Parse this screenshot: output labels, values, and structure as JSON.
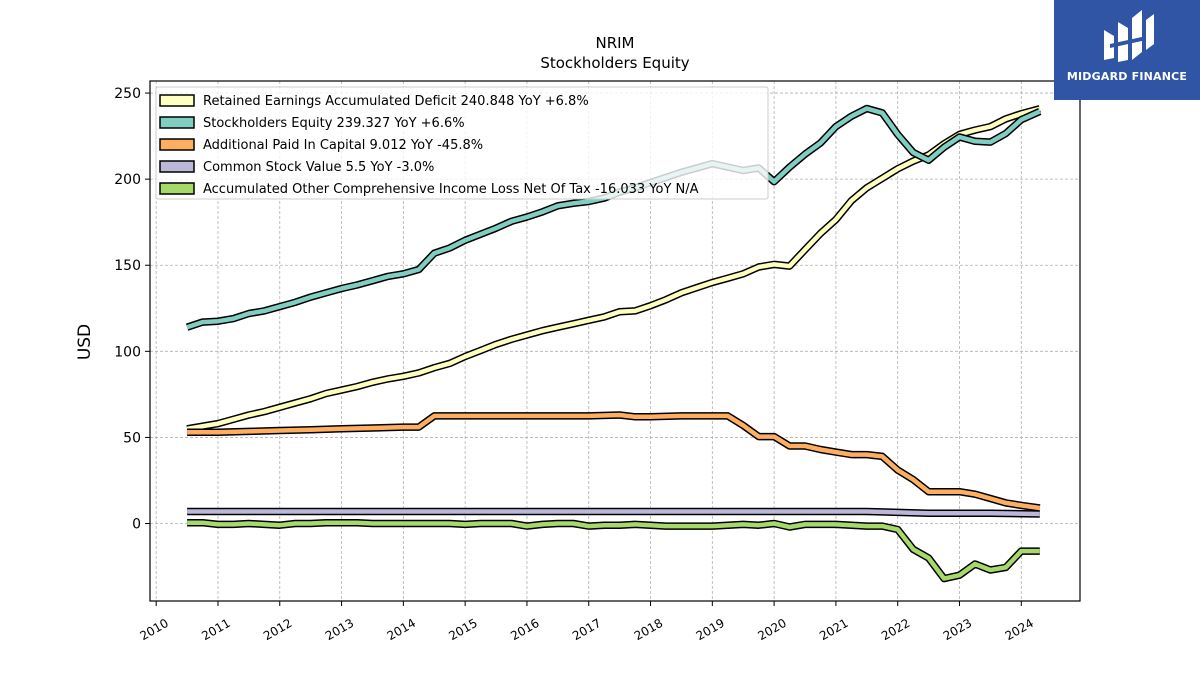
{
  "brand": {
    "name": "MIDGARD FINANCE",
    "bg_color": "#2f55a4"
  },
  "chart_data": {
    "type": "line",
    "title": "NRIM",
    "subtitle": "Stockholders  Equity",
    "ylabel": "USD",
    "xlabel": "",
    "xlim": [
      2009.9,
      2024.95
    ],
    "ylim": [
      -45,
      257
    ],
    "yticks": [
      0,
      50,
      100,
      150,
      200,
      250
    ],
    "xticks": [
      2010,
      2011,
      2012,
      2013,
      2014,
      2015,
      2016,
      2017,
      2018,
      2019,
      2020,
      2021,
      2022,
      2023,
      2024
    ],
    "grid": true,
    "legend_position": "top-left",
    "series": [
      {
        "name": "Retained Earnings Accumulated Deficit  240.848 YoY +6.8%",
        "color": "#ffffbf",
        "x": [
          2010.5,
          2010.75,
          2011.0,
          2011.25,
          2011.5,
          2011.75,
          2012.0,
          2012.25,
          2012.5,
          2012.75,
          2013.0,
          2013.25,
          2013.5,
          2013.75,
          2014.0,
          2014.25,
          2014.5,
          2014.75,
          2015.0,
          2015.25,
          2015.5,
          2015.75,
          2016.0,
          2016.25,
          2016.5,
          2016.75,
          2017.0,
          2017.25,
          2017.5,
          2017.75,
          2018.0,
          2018.25,
          2018.5,
          2018.75,
          2019.0,
          2019.25,
          2019.5,
          2019.75,
          2020.0,
          2020.25,
          2020.5,
          2020.75,
          2021.0,
          2021.25,
          2021.5,
          2021.75,
          2022.0,
          2022.25,
          2022.5,
          2022.75,
          2023.0,
          2023.25,
          2023.5,
          2023.75,
          2024.0,
          2024.3
        ],
        "values": [
          55,
          56.5,
          58,
          60.5,
          63,
          65,
          67.5,
          70,
          72.5,
          75.5,
          77.5,
          79.5,
          82,
          84,
          85.5,
          87.5,
          90.5,
          93,
          97,
          100.5,
          104,
          107,
          109.5,
          112,
          114,
          116,
          118,
          120,
          123,
          123.5,
          126.5,
          130,
          134,
          137,
          140,
          142.5,
          145,
          149,
          150.5,
          149.5,
          159,
          168.5,
          176.5,
          187.5,
          195,
          200.5,
          206,
          210.5,
          214,
          220.5,
          226,
          228.5,
          230.5,
          235,
          238,
          240.848
        ]
      },
      {
        "name": "Stockholders Equity  239.327 YoY +6.6%",
        "color": "#80cdc1",
        "x": [
          2010.5,
          2010.75,
          2011.0,
          2011.25,
          2011.5,
          2011.75,
          2012.0,
          2012.25,
          2012.5,
          2012.75,
          2013.0,
          2013.25,
          2013.5,
          2013.75,
          2014.0,
          2014.25,
          2014.5,
          2014.75,
          2015.0,
          2015.25,
          2015.5,
          2015.75,
          2016.0,
          2016.25,
          2016.5,
          2016.75,
          2017.0,
          2017.25,
          2017.5,
          2017.75,
          2018.0,
          2018.25,
          2018.5,
          2018.75,
          2019.0,
          2019.25,
          2019.5,
          2019.75,
          2020.0,
          2020.25,
          2020.5,
          2020.75,
          2021.0,
          2021.25,
          2021.5,
          2021.75,
          2022.0,
          2022.25,
          2022.5,
          2022.75,
          2023.0,
          2023.25,
          2023.5,
          2023.75,
          2024.0,
          2024.3
        ],
        "values": [
          114,
          117,
          117.5,
          119,
          122,
          123.5,
          126,
          128.5,
          131.5,
          134,
          136.5,
          138.5,
          141,
          143.5,
          145,
          147.5,
          157,
          160,
          164.5,
          168,
          171.5,
          175.5,
          178,
          181,
          184.5,
          186,
          187,
          189,
          192.5,
          195,
          198,
          201,
          204,
          206.5,
          209,
          207,
          205,
          206.5,
          198.5,
          207,
          214.5,
          221,
          230.5,
          236.5,
          241,
          238.5,
          226,
          215.5,
          211,
          218.5,
          224.5,
          222,
          221.5,
          226.5,
          234.5,
          239.327
        ]
      },
      {
        "name": "Additional Paid In Capital  9.012 YoY -45.8%",
        "color": "#fdae61",
        "x": [
          2010.5,
          2011.0,
          2011.5,
          2012.0,
          2012.5,
          2013.0,
          2013.5,
          2014.0,
          2014.25,
          2014.5,
          2015.0,
          2015.5,
          2016.0,
          2016.5,
          2017.0,
          2017.5,
          2017.75,
          2018.0,
          2018.5,
          2018.75,
          2019.0,
          2019.25,
          2019.5,
          2019.75,
          2020.0,
          2020.25,
          2020.5,
          2020.75,
          2021.0,
          2021.25,
          2021.5,
          2021.75,
          2022.0,
          2022.25,
          2022.5,
          2022.75,
          2023.0,
          2023.25,
          2023.5,
          2023.75,
          2024.0,
          2024.3
        ],
        "values": [
          53,
          53,
          53.5,
          54,
          54.5,
          55,
          55.5,
          56,
          56,
          62.5,
          62.5,
          62.5,
          62.5,
          62.5,
          62.5,
          63,
          62,
          62,
          62.5,
          62.5,
          62.5,
          62.5,
          57,
          50.5,
          50.5,
          45,
          45,
          43,
          41.5,
          40,
          40,
          39,
          31,
          25.5,
          18.5,
          18.5,
          18.5,
          17,
          14.5,
          12,
          10.5,
          9.012
        ]
      },
      {
        "name": "Common Stock Value  5.5 YoY -3.0%",
        "color": "#bab7d9",
        "x": [
          2010.5,
          2011.5,
          2012.5,
          2013.5,
          2014.5,
          2015.5,
          2016.5,
          2017.5,
          2018.5,
          2019.5,
          2020.5,
          2021.5,
          2022.5,
          2023.5,
          2024.3
        ],
        "values": [
          7,
          7,
          7,
          7,
          7,
          7,
          7,
          7,
          7,
          7,
          7,
          7,
          6,
          6,
          5.5
        ]
      },
      {
        "name": "Accumulated Other Comprehensive Income Loss Net Of Tax  -16.033 YoY N/A",
        "color": "#a6d96a",
        "x": [
          2010.5,
          2010.75,
          2011.0,
          2011.25,
          2011.5,
          2011.75,
          2012.0,
          2012.25,
          2012.5,
          2012.75,
          2013.0,
          2013.25,
          2013.5,
          2013.75,
          2014.0,
          2014.25,
          2014.5,
          2014.75,
          2015.0,
          2015.25,
          2015.5,
          2015.75,
          2016.0,
          2016.25,
          2016.5,
          2016.75,
          2017.0,
          2017.25,
          2017.5,
          2017.75,
          2018.0,
          2018.25,
          2018.5,
          2018.75,
          2019.0,
          2019.25,
          2019.5,
          2019.75,
          2020.0,
          2020.25,
          2020.5,
          2020.75,
          2021.0,
          2021.25,
          2021.5,
          2021.75,
          2022.0,
          2022.25,
          2022.5,
          2022.75,
          2023.0,
          2023.25,
          2023.5,
          2023.75,
          2024.0,
          2024.3
        ],
        "values": [
          0.5,
          0.5,
          -0.5,
          -0.5,
          0,
          -0.5,
          -1,
          0,
          0,
          0.5,
          0.5,
          0.5,
          0,
          0,
          0,
          0,
          0,
          0,
          -0.5,
          0,
          0,
          0,
          -1.5,
          -0.5,
          0,
          0,
          -1.5,
          -1,
          -1,
          -0.5,
          -1,
          -1.5,
          -1.5,
          -1.5,
          -1.5,
          -1,
          -0.5,
          -1,
          0,
          -2,
          -0.5,
          -0.5,
          -0.5,
          -1,
          -1.5,
          -1.5,
          -3.5,
          -15,
          -20,
          -32,
          -30,
          -23.5,
          -27,
          -25.5,
          -16,
          -16.033
        ]
      }
    ]
  }
}
